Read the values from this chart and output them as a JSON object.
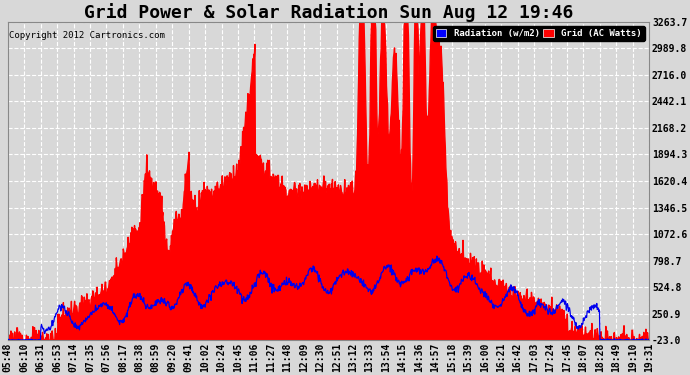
{
  "title": "Grid Power & Solar Radiation Sun Aug 12 19:46",
  "copyright": "Copyright 2012 Cartronics.com",
  "legend_labels": [
    "Radiation (w/m2)",
    "Grid (AC Watts)"
  ],
  "legend_colors": [
    "#0000ff",
    "#ff0000"
  ],
  "yticks": [
    -23.0,
    250.9,
    524.8,
    798.7,
    1072.6,
    1346.5,
    1620.4,
    1894.3,
    2168.2,
    2442.1,
    2716.0,
    2989.8,
    3263.7
  ],
  "ylim": [
    -23.0,
    3263.7
  ],
  "xtick_labels": [
    "05:48",
    "06:10",
    "06:31",
    "06:53",
    "07:14",
    "07:35",
    "07:56",
    "08:17",
    "08:38",
    "08:59",
    "09:20",
    "09:41",
    "10:02",
    "10:24",
    "10:45",
    "11:06",
    "11:27",
    "11:48",
    "12:09",
    "12:30",
    "12:51",
    "13:12",
    "13:33",
    "13:54",
    "14:15",
    "14:36",
    "14:57",
    "15:18",
    "15:39",
    "16:00",
    "16:21",
    "16:42",
    "17:03",
    "17:24",
    "17:45",
    "18:07",
    "18:28",
    "18:49",
    "19:10",
    "19:31"
  ],
  "background_color": "#d8d8d8",
  "plot_background": "#d8d8d8",
  "grid_color": "#ffffff",
  "title_fontsize": 13,
  "axis_fontsize": 7,
  "red_fill_color": "#ff0000",
  "blue_line_color": "#0000ee"
}
